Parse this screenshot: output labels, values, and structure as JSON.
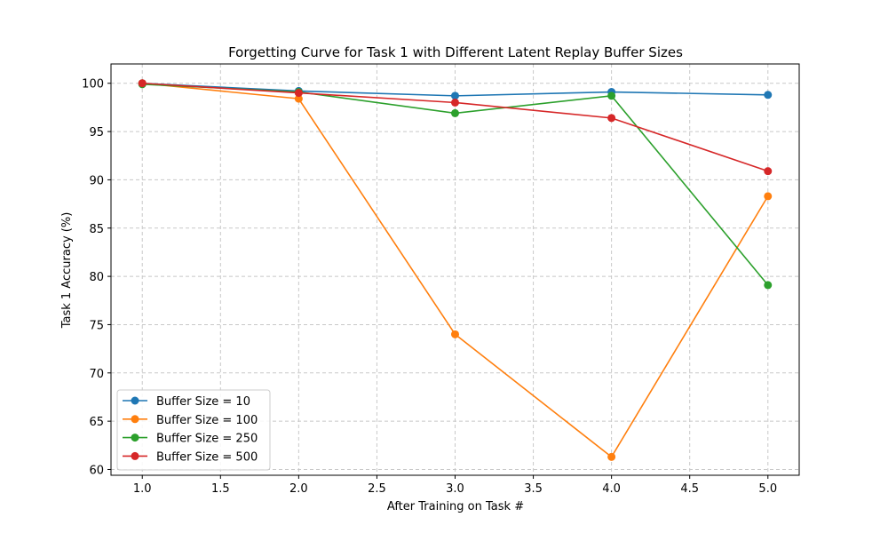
{
  "chart_data": {
    "type": "line",
    "title": "Forgetting Curve for Task 1 with Different Latent Replay Buffer Sizes",
    "xlabel": "After Training on Task #",
    "ylabel": "Task 1 Accuracy (%)",
    "xlim": [
      0.8,
      5.2
    ],
    "ylim": [
      59.4,
      102
    ],
    "xticks": [
      1.0,
      1.5,
      2.0,
      2.5,
      3.0,
      3.5,
      4.0,
      4.5,
      5.0
    ],
    "xtick_labels": [
      "1.0",
      "1.5",
      "2.0",
      "2.5",
      "3.0",
      "3.5",
      "4.0",
      "4.5",
      "5.0"
    ],
    "yticks": [
      60,
      65,
      70,
      75,
      80,
      85,
      90,
      95,
      100
    ],
    "ytick_labels": [
      "60",
      "65",
      "70",
      "75",
      "80",
      "85",
      "90",
      "95",
      "100"
    ],
    "grid": true,
    "legend_position": "lower-left",
    "x": [
      1,
      2,
      3,
      4,
      5
    ],
    "series": [
      {
        "name": "Buffer Size = 10",
        "color": "#1f77b4",
        "values": [
          100.0,
          99.2,
          98.7,
          99.1,
          98.8
        ]
      },
      {
        "name": "Buffer Size = 100",
        "color": "#ff7f0e",
        "values": [
          100.0,
          98.4,
          74.0,
          61.3,
          88.3
        ]
      },
      {
        "name": "Buffer Size = 250",
        "color": "#2ca02c",
        "values": [
          99.9,
          99.1,
          96.9,
          98.7,
          79.1
        ]
      },
      {
        "name": "Buffer Size = 500",
        "color": "#d62728",
        "values": [
          100.0,
          99.0,
          98.0,
          96.4,
          90.9
        ]
      }
    ]
  }
}
